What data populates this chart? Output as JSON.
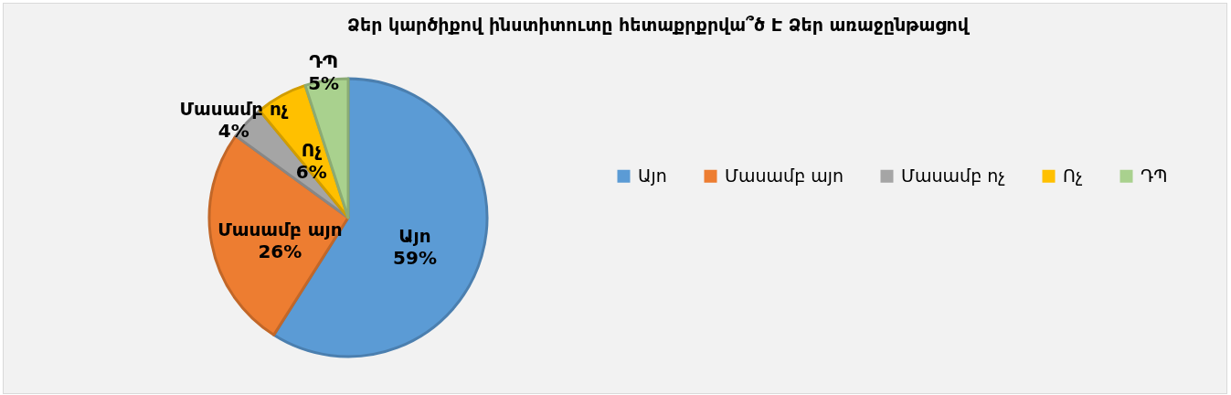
{
  "chart_data": {
    "type": "pie",
    "title": "Ձեր կարծիքով ինստիտուտը հետաքրքրվա՞ծ Է Ձեր առաջընթացով",
    "categories": [
      "Այո",
      "Մասամբ այո",
      "Մասամբ ոչ",
      "Ոչ",
      "ԴՊ"
    ],
    "values": [
      59,
      26,
      4,
      6,
      5
    ],
    "colors": [
      "#5b9bd5",
      "#ed7d31",
      "#a5a5a5",
      "#ffc000",
      "#a9d18e"
    ],
    "value_labels": [
      "59%",
      "26%",
      "4%",
      "6%",
      "5%"
    ],
    "legend": "right"
  }
}
